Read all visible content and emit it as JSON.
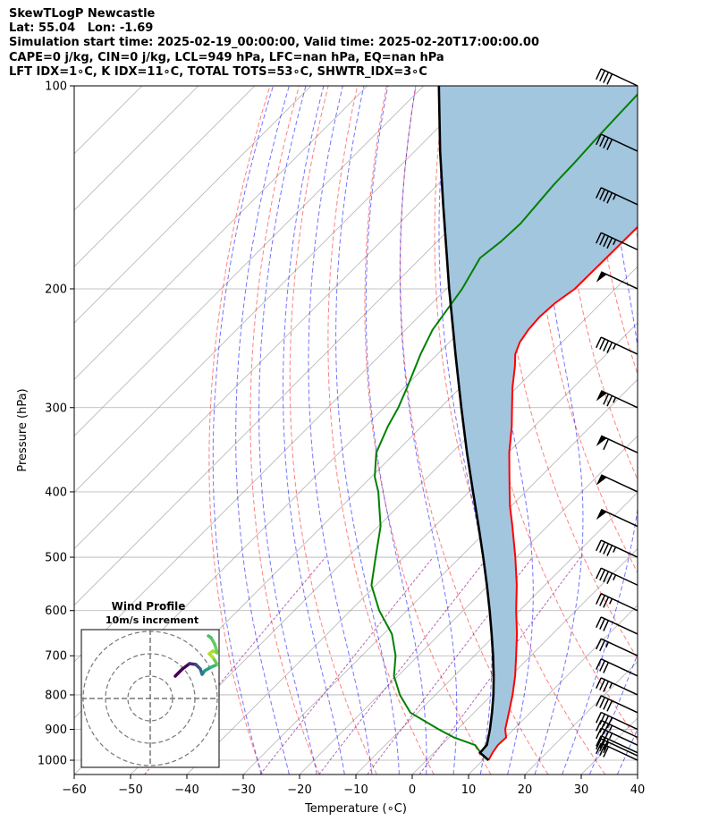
{
  "header": {
    "lines": [
      "SkewTLogP Newcastle",
      "Lat: 55.04   Lon: -1.69",
      "Simulation start time: 2025-02-19_00:00:00, Valid time: 2025-02-20T17:00:00.00",
      "CAPE=0 j/kg, CIN=0 j/kg, LCL=949 hPa, LFC=nan hPa, EQ=nan hPa",
      "LFT IDX=1∘C, K IDX=11∘C, TOTAL TOTS=53∘C, SHWTR_IDX=3∘C"
    ]
  },
  "chart_data": {
    "type": "skewt-logp",
    "xlabel": "Temperature (∘C)",
    "ylabel": "Pressure (hPa)",
    "xlim": [
      -60,
      40
    ],
    "ylim": [
      1050,
      100
    ],
    "x_ticks": [
      -60,
      -50,
      -40,
      -30,
      -20,
      -10,
      0,
      10,
      20,
      30,
      40
    ],
    "y_ticks": [
      100,
      200,
      300,
      400,
      500,
      600,
      700,
      800,
      900,
      1000
    ],
    "y_scale": "log",
    "skew_deg_per_log10": 119.5,
    "grid": true,
    "colors": {
      "temperature": "#ff0000",
      "dewpoint": "#008000",
      "parcel": "#000000",
      "cape_shading": "#a3c6df",
      "dry_adiabats": "#ff0000",
      "moist_adiabats": "#0000ff",
      "isotherms": "#999999",
      "mixing_ratio": "#800080"
    },
    "temperature": {
      "pressure": [
        1000,
        975,
        950,
        925,
        900,
        850,
        800,
        750,
        700,
        650,
        600,
        550,
        500,
        450,
        420,
        400,
        380,
        350,
        320,
        300,
        280,
        260,
        250,
        240,
        230,
        220,
        210,
        200,
        180,
        160,
        150,
        140,
        130,
        120,
        110,
        100
      ],
      "values": [
        11.0,
        10.4,
        10.0,
        10.1,
        8.5,
        6.2,
        3.7,
        0.8,
        -2.6,
        -6.3,
        -10.6,
        -15.0,
        -20.2,
        -26.2,
        -30.2,
        -32.8,
        -35.5,
        -39.8,
        -44.0,
        -47.3,
        -50.8,
        -54.2,
        -56.2,
        -57.5,
        -58.2,
        -58.5,
        -58.2,
        -57.2,
        -57.1,
        -57.0,
        -57.0,
        -56.9,
        -56.8,
        -56.7,
        -56.6,
        -56.5
      ]
    },
    "dewpoint": {
      "pressure": [
        980,
        975,
        950,
        925,
        900,
        850,
        800,
        750,
        700,
        650,
        600,
        550,
        500,
        450,
        400,
        380,
        350,
        320,
        300,
        280,
        250,
        230,
        200,
        180,
        170,
        160,
        150,
        140,
        130,
        120,
        110,
        100
      ],
      "values": [
        8.4,
        8.3,
        6.0,
        0.8,
        -3.3,
        -11.3,
        -16.3,
        -20.7,
        -24.0,
        -28.5,
        -34.9,
        -40.8,
        -45.0,
        -49.6,
        -56.1,
        -59.4,
        -63.4,
        -66.0,
        -67.5,
        -69.5,
        -73.0,
        -75.2,
        -77.2,
        -79.5,
        -78.7,
        -78.4,
        -78.9,
        -79.4,
        -79.6,
        -80.0,
        -80.3,
        -80.6
      ]
    },
    "parcel": {
      "pressure": [
        1000,
        975,
        949,
        900,
        850,
        800,
        750,
        700,
        650,
        600,
        550,
        500,
        450,
        400,
        350,
        300,
        250,
        200,
        150,
        125,
        100
      ],
      "values": [
        11.0,
        8.2,
        8.0,
        5.8,
        3.2,
        0.3,
        -3.0,
        -6.7,
        -10.8,
        -15.3,
        -20.3,
        -25.9,
        -32.2,
        -39.3,
        -47.3,
        -56.3,
        -66.8,
        -79.5,
        -95.5,
        -105.5,
        -117.3
      ]
    },
    "wind_barbs": {
      "pressure": [
        1000,
        985,
        975,
        950,
        925,
        900,
        850,
        800,
        750,
        700,
        650,
        600,
        550,
        500,
        450,
        400,
        350,
        300,
        250,
        200,
        175,
        150,
        125,
        100
      ],
      "speed_kt": [
        30,
        30,
        30,
        35,
        35,
        40,
        40,
        35,
        30,
        25,
        30,
        35,
        45,
        45,
        50,
        50,
        60,
        75,
        45,
        50,
        45,
        45,
        40,
        40
      ]
    },
    "inset": {
      "title": "Wind Profile",
      "subtitle": "10m/s increment"
    }
  }
}
